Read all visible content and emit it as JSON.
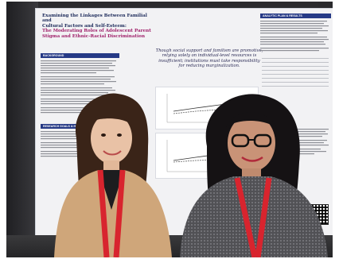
{
  "poster": {
    "title_line1": "Examining the Linkages Between Familial and",
    "title_line2": "Cultural Factors and Self-Esteem:",
    "title_line3": "The Moderating Roles of Adolescent Parent",
    "title_line4": "Stigma and Ethnic-Racial Discrimination",
    "left_section_1": "BACKGROUND",
    "left_section_2": "RESEARCH GOALS & HYPOTHESES",
    "right_section_1": "ANALYTIC PLAN & RESULTS",
    "quote": "Though social support and familism are promotive, relying solely on individual-level resources is insufficient; institutions must take responsibility for reducing marginalization."
  },
  "colors": {
    "poster_accent": "#263a86",
    "title_accent": "#a0226b",
    "lanyard": "#d8242e"
  }
}
